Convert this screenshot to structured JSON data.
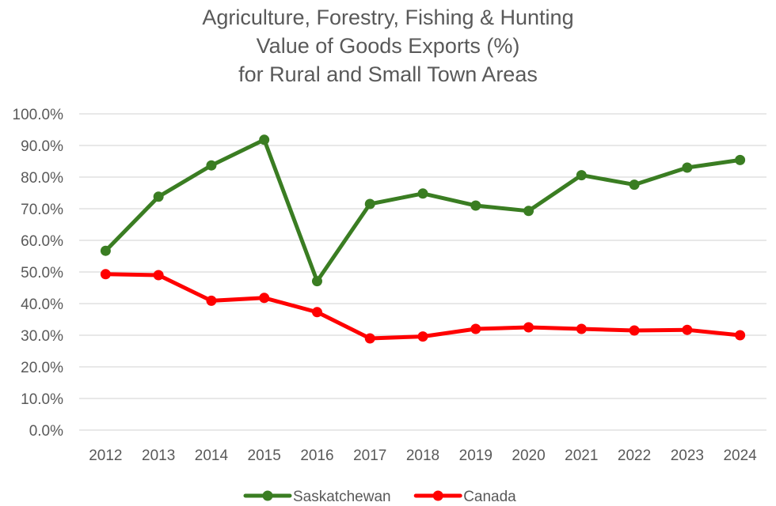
{
  "chart_data": {
    "type": "line",
    "title_lines": [
      "Agriculture, Forestry, Fishing & Hunting",
      "Value of Goods Exports (%)",
      "for Rural and Small Town Areas"
    ],
    "xlabel": "",
    "ylabel": "",
    "x": [
      "2012",
      "2013",
      "2014",
      "2015",
      "2016",
      "2017",
      "2018",
      "2019",
      "2020",
      "2021",
      "2022",
      "2023",
      "2024"
    ],
    "ylim": [
      0,
      100
    ],
    "y_ticks": [
      0,
      10,
      20,
      30,
      40,
      50,
      60,
      70,
      80,
      90,
      100
    ],
    "y_tick_labels": [
      "0.0%",
      "10.0%",
      "20.0%",
      "30.0%",
      "40.0%",
      "50.0%",
      "60.0%",
      "70.0%",
      "80.0%",
      "90.0%",
      "100.0%"
    ],
    "grid": true,
    "legend_position": "bottom-center",
    "series": [
      {
        "name": "Saskatchewan",
        "color": "#3a7d22",
        "values": [
          56.7,
          73.8,
          83.7,
          91.8,
          47.1,
          71.5,
          74.8,
          71.0,
          69.3,
          80.6,
          77.6,
          83.0,
          85.4
        ]
      },
      {
        "name": "Canada",
        "color": "#ff0000",
        "values": [
          49.3,
          49.0,
          40.9,
          41.8,
          37.3,
          29.0,
          29.6,
          32.0,
          32.5,
          32.0,
          31.5,
          31.7,
          30.0
        ]
      }
    ]
  }
}
